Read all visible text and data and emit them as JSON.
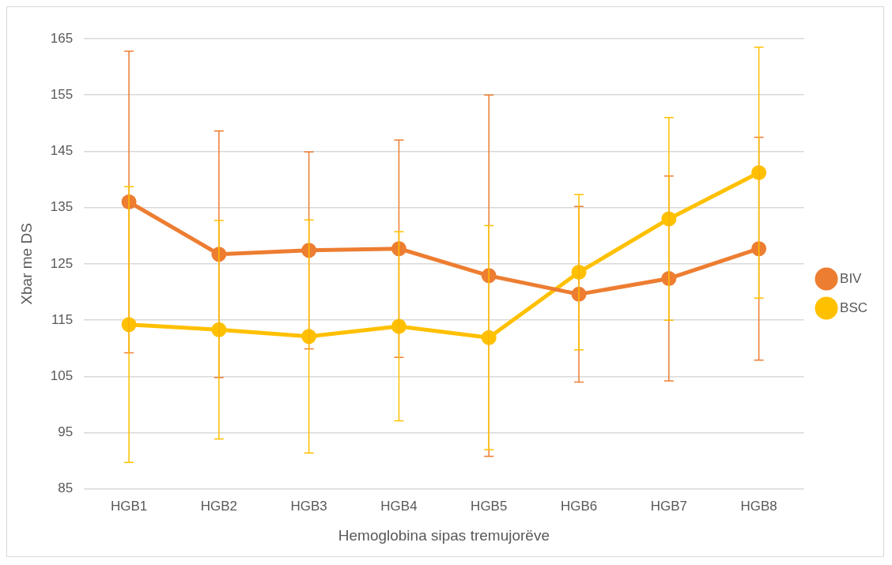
{
  "chart_data": {
    "type": "line",
    "xlabel": "Hemoglobina sipas tremujorëve",
    "ylabel": "Xbar me DS",
    "categories": [
      "HGB1",
      "HGB2",
      "HGB3",
      "HGB4",
      "HGB5",
      "HGB6",
      "HGB7",
      "HGB8"
    ],
    "series": [
      {
        "name": "BIV",
        "color": "#ed7d31",
        "values": [
          136.0,
          126.7,
          127.4,
          127.7,
          122.9,
          119.6,
          122.4,
          127.7
        ],
        "errors": [
          26.8,
          21.9,
          17.5,
          19.3,
          32.1,
          15.6,
          18.2,
          19.8
        ]
      },
      {
        "name": "BSC",
        "color": "#ffc000",
        "values": [
          114.2,
          113.3,
          112.1,
          113.9,
          111.9,
          123.5,
          133.0,
          141.2
        ],
        "errors": [
          24.5,
          19.4,
          20.7,
          16.8,
          19.9,
          13.8,
          18.0,
          22.3
        ]
      }
    ],
    "ylim": [
      85,
      165
    ],
    "yticks": [
      85,
      95,
      105,
      115,
      125,
      135,
      145,
      155,
      165
    ],
    "grid": "y",
    "legend": "right",
    "marker": "circle",
    "line_style": "solid"
  }
}
